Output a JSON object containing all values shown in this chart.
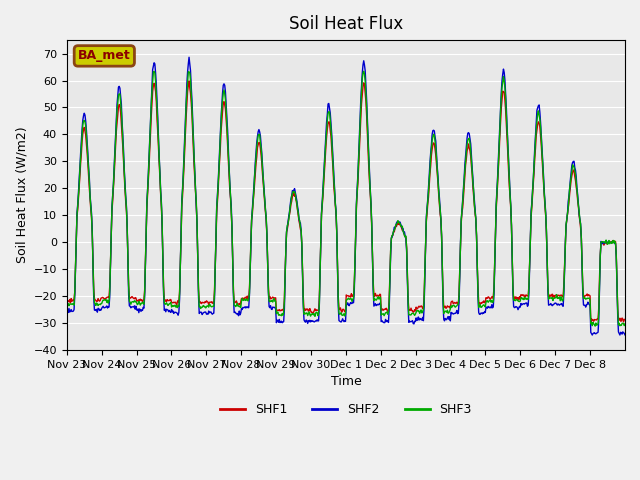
{
  "title": "Soil Heat Flux",
  "ylabel": "Soil Heat Flux (W/m2)",
  "xlabel": "Time",
  "ylim": [
    -40,
    75
  ],
  "yticks": [
    -40,
    -30,
    -20,
    -10,
    0,
    10,
    20,
    30,
    40,
    50,
    60,
    70
  ],
  "line_colors": {
    "SHF1": "#cc0000",
    "SHF2": "#0000cc",
    "SHF3": "#00aa00"
  },
  "line_width": 1.0,
  "background_color": "#e8e8e8",
  "legend_label": "BA_met",
  "legend_box_color": "#cccc00",
  "legend_box_edge": "#8b4513",
  "x_tick_labels": [
    "Nov 23",
    "Nov 24",
    "Nov 25",
    "Nov 26",
    "Nov 27",
    "Nov 28",
    "Nov 29",
    "Nov 30",
    "Dec 1",
    "Dec 2",
    "Dec 3",
    "Dec 4",
    "Dec 5",
    "Dec 6",
    "Dec 7",
    "Dec 8"
  ],
  "day_peaks": [
    48,
    58,
    67,
    67,
    59,
    42,
    20,
    51,
    67,
    8,
    42,
    41,
    64,
    51,
    30,
    0
  ],
  "day_nights": [
    -24,
    -23,
    -24,
    -25,
    -25,
    -23,
    -28,
    -28,
    -22,
    -28,
    -27,
    -25,
    -23,
    -22,
    -22,
    -32
  ]
}
